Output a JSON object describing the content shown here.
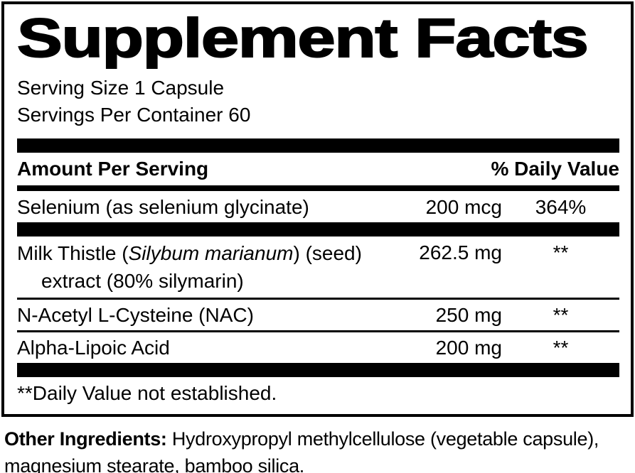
{
  "label": {
    "title": "Supplement Facts",
    "serving_size": "Serving Size 1 Capsule",
    "servings_per_container": "Servings Per Container 60",
    "columns": {
      "amount_header": "Amount Per Serving",
      "dv_header": "% Daily Value"
    },
    "rows": [
      {
        "name": "Selenium (as selenium glycinate)",
        "amount": "200 mcg",
        "dv": "364%"
      },
      {
        "name_pre": "Milk Thistle (",
        "name_italic": "Silybum marianum",
        "name_post": ") (seed)",
        "name_line2": "extract (80% silymarin)",
        "amount": "262.5 mg",
        "dv": "**"
      },
      {
        "name": "N-Acetyl L-Cysteine (NAC)",
        "amount": "250 mg",
        "dv": "**"
      },
      {
        "name": "Alpha-Lipoic Acid",
        "amount": "200 mg",
        "dv": "**"
      }
    ],
    "footnote": "**Daily Value not established.",
    "other_ingredients": {
      "heading": "Other Ingredients:",
      "text": " Hydroxypropyl methylcellulose (vegetable capsule), magnesium stearate, bamboo silica."
    }
  },
  "colors": {
    "ink": "#000000",
    "background": "#ffffff"
  }
}
